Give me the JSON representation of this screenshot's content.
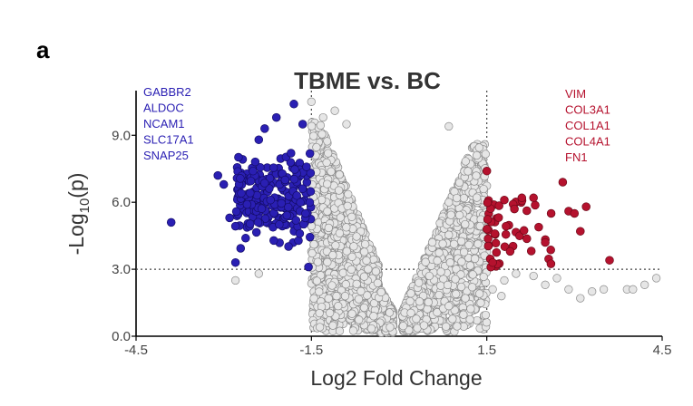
{
  "panel_label": "a",
  "colors": {
    "down": "#2a1fb3",
    "up": "#b5122e",
    "ns": "#e6e6e6",
    "ns_stroke": "#8a8a8a"
  },
  "chart_data": {
    "type": "scatter",
    "title": "TBME vs. BC",
    "xlabel": "Log2 Fold Change",
    "ylabel": {
      "prefix": "-Log",
      "subscript": "10",
      "suffix": "(p)"
    },
    "xlim": [
      -4.5,
      4.5
    ],
    "ylim": [
      0,
      11.0
    ],
    "x_ticks": [
      -4.5,
      -1.5,
      1.5,
      4.5
    ],
    "x_tick_labels": [
      "-4.5",
      "-1.5",
      "1.5",
      "4.5"
    ],
    "y_ticks": [
      0.0,
      3.0,
      6.0,
      9.0
    ],
    "y_tick_labels": [
      "0.0",
      "3.0",
      "6.0",
      "9.0"
    ],
    "thresholds": {
      "log2fc": [
        -1.5,
        1.5
      ],
      "neglog10p": 3.0
    },
    "grid": false,
    "annotations": {
      "down_genes": [
        "GABBR2",
        "ALDOC",
        "NCAM1",
        "SLC17A1",
        "SNAP25"
      ],
      "up_genes": [
        "VIM",
        "COL3A1",
        "COL1A1",
        "COL4A1",
        "FN1"
      ]
    },
    "series": [
      {
        "category": "down",
        "points": [
          [
            -3.9,
            5.1
          ],
          [
            -3.1,
            7.2
          ],
          [
            -3.0,
            6.8
          ],
          [
            -2.9,
            5.3
          ],
          [
            -2.8,
            3.3
          ],
          [
            -2.7,
            6.4
          ],
          [
            -2.6,
            5.9
          ],
          [
            -2.5,
            7.4
          ],
          [
            -2.4,
            8.8
          ],
          [
            -2.3,
            9.3
          ],
          [
            -2.2,
            6.1
          ],
          [
            -2.1,
            9.8
          ],
          [
            -2.05,
            5.0
          ],
          [
            -1.95,
            7.0
          ],
          [
            -1.85,
            8.2
          ],
          [
            -1.8,
            10.4
          ],
          [
            -1.75,
            6.3
          ],
          [
            -1.7,
            4.6
          ],
          [
            -1.65,
            9.5
          ],
          [
            -1.6,
            5.5
          ],
          [
            -1.55,
            3.1
          ]
        ],
        "cluster": {
          "x_range": [
            -2.8,
            -1.5
          ],
          "y_range": [
            3.8,
            8.3
          ],
          "count": 230,
          "seed": 11
        }
      },
      {
        "category": "up",
        "points": [
          [
            1.5,
            7.4
          ],
          [
            1.6,
            3.3
          ],
          [
            1.8,
            6.1
          ],
          [
            1.9,
            3.8
          ],
          [
            2.1,
            6.2
          ],
          [
            2.3,
            6.2
          ],
          [
            2.5,
            4.2
          ],
          [
            2.6,
            5.5
          ],
          [
            2.8,
            6.9
          ],
          [
            2.9,
            5.6
          ],
          [
            3.0,
            5.5
          ],
          [
            3.1,
            4.7
          ],
          [
            3.2,
            5.8
          ],
          [
            3.6,
            3.4
          ]
        ],
        "cluster": {
          "x_range": [
            1.5,
            2.6
          ],
          "y_range": [
            3.0,
            6.2
          ],
          "count": 48,
          "seed": 23
        }
      },
      {
        "category": "ns",
        "points": [
          [
            -1.5,
            10.5
          ],
          [
            -1.1,
            10.1
          ],
          [
            -0.9,
            9.5
          ],
          [
            -1.3,
            9.8
          ],
          [
            0.85,
            9.4
          ],
          [
            0.85,
            6.0
          ],
          [
            1.8,
            2.5
          ],
          [
            2.0,
            2.8
          ],
          [
            2.3,
            2.7
          ],
          [
            2.5,
            2.3
          ],
          [
            2.7,
            2.6
          ],
          [
            2.9,
            2.1
          ],
          [
            3.1,
            1.7
          ],
          [
            3.3,
            2.0
          ],
          [
            3.5,
            2.1
          ],
          [
            3.9,
            2.1
          ],
          [
            4.0,
            2.1
          ],
          [
            4.2,
            2.3
          ],
          [
            4.4,
            2.6
          ],
          [
            -2.8,
            2.5
          ],
          [
            -2.4,
            2.8
          ],
          [
            1.6,
            2.1
          ],
          [
            1.75,
            1.8
          ]
        ],
        "cluster": {
          "shape": "volcano",
          "count": 2600,
          "seed": 7
        }
      }
    ]
  }
}
